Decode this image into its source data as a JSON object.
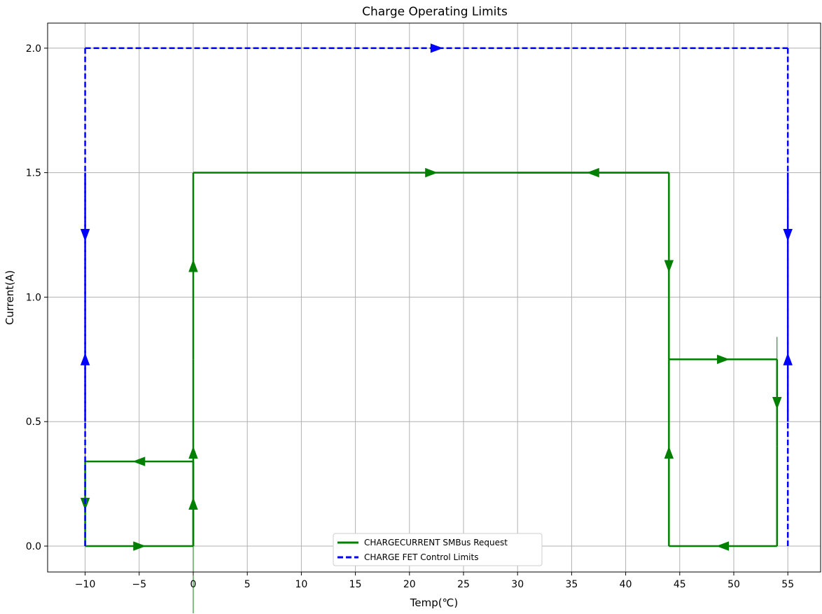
{
  "chart_data": {
    "type": "line",
    "title": "Charge Operating Limits",
    "xlabel": "Temp(℃)",
    "ylabel": "Current(A)",
    "xlim": [
      -13,
      58.5
    ],
    "ylim": [
      -0.1,
      2.1
    ],
    "xticks": [
      -10,
      -5,
      0,
      5,
      10,
      15,
      20,
      25,
      30,
      35,
      40,
      45,
      50,
      55
    ],
    "xtick_labels": [
      "−10",
      "−5",
      "0",
      "5",
      "10",
      "15",
      "20",
      "25",
      "30",
      "35",
      "40",
      "45",
      "50",
      "55"
    ],
    "yticks": [
      0.0,
      0.5,
      1.0,
      1.5,
      2.0
    ],
    "ytick_labels": [
      "0.0",
      "0.5",
      "1.0",
      "1.5",
      "2.0"
    ],
    "grid": true,
    "legend_position": "bottom-center",
    "series": [
      {
        "name": "CHARGECURRENT SMBus Request",
        "color": "#008000",
        "style": "solid",
        "segments": [
          {
            "x": [
              -10,
              0
            ],
            "y": [
              0,
              0
            ],
            "arrow": "right"
          },
          {
            "x": [
              0,
              0
            ],
            "y": [
              0,
              0.75
            ],
            "arrow": "up"
          },
          {
            "x": [
              0,
              0
            ],
            "y": [
              0.75,
              1.5
            ],
            "arrow": "down"
          },
          {
            "x": [
              0,
              44
            ],
            "y": [
              1.5,
              1.5
            ],
            "arrow": "right"
          },
          {
            "x": [
              44,
              44
            ],
            "y": [
              1.5,
              0.75
            ],
            "arrow": "down"
          },
          {
            "x": [
              44,
              54
            ],
            "y": [
              0.75,
              0.75
            ],
            "arrow": "right"
          },
          {
            "x": [
              54,
              54
            ],
            "y": [
              0.75,
              0.4
            ],
            "arrow": "down"
          },
          {
            "x": [
              54,
              54
            ],
            "y": [
              0.4,
              0
            ],
            "arrow": "none"
          },
          {
            "x": [
              54,
              44
            ],
            "y": [
              0,
              0
            ],
            "arrow": "left"
          },
          {
            "x": [
              44,
              44
            ],
            "y": [
              0,
              0.75
            ],
            "arrow": "up"
          },
          {
            "x": [
              44,
              30
            ],
            "y": [
              1.5,
              1.5
            ],
            "arrow": "left"
          },
          {
            "x": [
              0,
              0
            ],
            "y": [
              0,
              0.34
            ],
            "arrow": "up"
          },
          {
            "x": [
              0,
              -10
            ],
            "y": [
              0.34,
              0.34
            ],
            "arrow": "left"
          },
          {
            "x": [
              -10,
              -10
            ],
            "y": [
              0.34,
              0
            ],
            "arrow": "down"
          }
        ],
        "extra_ticks": [
          {
            "x": [
              0,
              0
            ],
            "y": [
              0,
              -0.27
            ]
          },
          {
            "x": [
              54,
              54
            ],
            "y": [
              0.75,
              0.84
            ]
          },
          {
            "x": [
              -10,
              -10
            ],
            "y": [
              0.5,
              0.08
            ]
          }
        ]
      },
      {
        "name": "CHARGE FET Control Limits",
        "color": "#0000ff",
        "style": "dashed",
        "segments": [
          {
            "x": [
              -10,
              -10
            ],
            "y": [
              0,
              1.5
            ],
            "arrow": "up"
          },
          {
            "x": [
              -10,
              -10
            ],
            "y": [
              2.0,
              0.5
            ],
            "arrow": "down"
          },
          {
            "x": [
              -10,
              55
            ],
            "y": [
              2.0,
              2.0
            ],
            "arrow": "right"
          },
          {
            "x": [
              55,
              55
            ],
            "y": [
              2.0,
              0.5
            ],
            "arrow": "down"
          },
          {
            "x": [
              55,
              55
            ],
            "y": [
              0,
              1.5
            ],
            "arrow": "up"
          }
        ]
      }
    ]
  }
}
